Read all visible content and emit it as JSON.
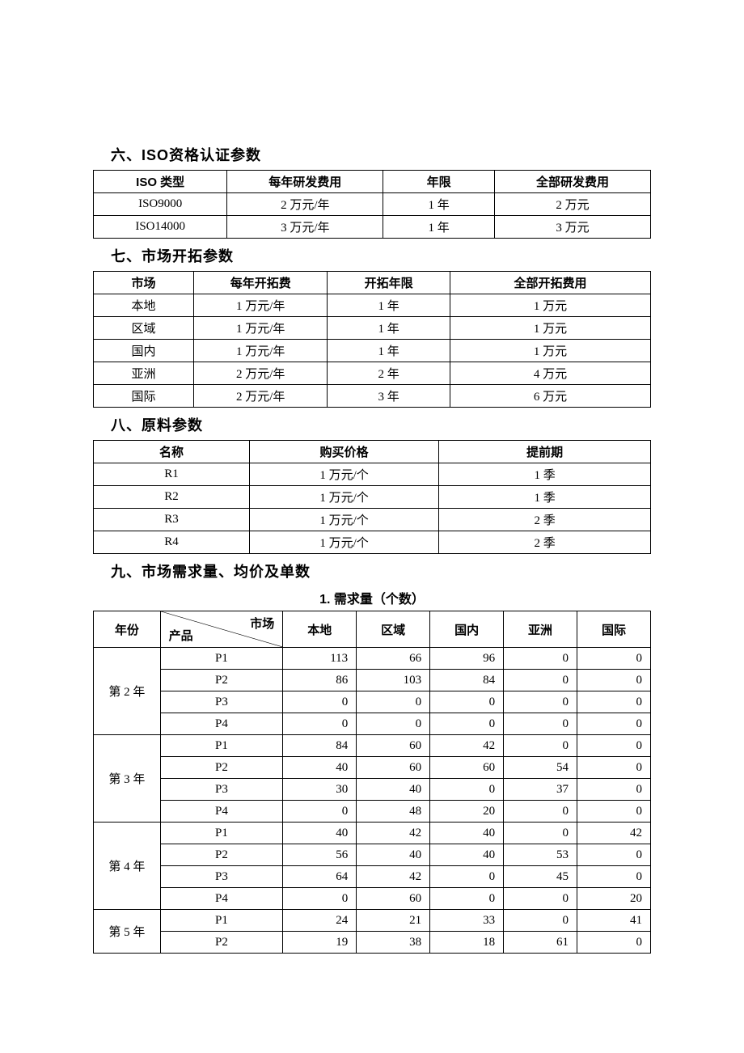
{
  "section6": {
    "heading": "六、ISO资格认证参数",
    "columns": [
      "ISO 类型",
      "每年研发费用",
      "年限",
      "全部研发费用"
    ],
    "rows": [
      [
        "ISO9000",
        "2 万元/年",
        "1 年",
        "2 万元"
      ],
      [
        "ISO14000",
        "3 万元/年",
        "1 年",
        "3 万元"
      ]
    ]
  },
  "section7": {
    "heading": "七、市场开拓参数",
    "columns": [
      "市场",
      "每年开拓费",
      "开拓年限",
      "全部开拓费用"
    ],
    "rows": [
      [
        "本地",
        "1 万元/年",
        "1 年",
        "1 万元"
      ],
      [
        "区域",
        "1 万元/年",
        "1 年",
        "1 万元"
      ],
      [
        "国内",
        "1 万元/年",
        "1 年",
        "1 万元"
      ],
      [
        "亚洲",
        "2 万元/年",
        "2 年",
        "4 万元"
      ],
      [
        "国际",
        "2 万元/年",
        "3 年",
        "6 万元"
      ]
    ]
  },
  "section8": {
    "heading": "八、原料参数",
    "columns": [
      "名称",
      "购买价格",
      "提前期"
    ],
    "rows": [
      [
        "R1",
        "1 万元/个",
        "1 季"
      ],
      [
        "R2",
        "1 万元/个",
        "1 季"
      ],
      [
        "R3",
        "1 万元/个",
        "2 季"
      ],
      [
        "R4",
        "1 万元/个",
        "2 季"
      ]
    ]
  },
  "section9": {
    "heading": "九、市场需求量、均价及单数",
    "subheading": "1. 需求量（个数）",
    "year_label": "年份",
    "diag_top": "市场",
    "diag_bottom": "产品",
    "market_cols": [
      "本地",
      "区域",
      "国内",
      "亚洲",
      "国际"
    ],
    "groups": [
      {
        "year": "第 2 年",
        "rows": [
          [
            "P1",
            "113",
            "66",
            "96",
            "0",
            "0"
          ],
          [
            "P2",
            "86",
            "103",
            "84",
            "0",
            "0"
          ],
          [
            "P3",
            "0",
            "0",
            "0",
            "0",
            "0"
          ],
          [
            "P4",
            "0",
            "0",
            "0",
            "0",
            "0"
          ]
        ]
      },
      {
        "year": "第 3 年",
        "rows": [
          [
            "P1",
            "84",
            "60",
            "42",
            "0",
            "0"
          ],
          [
            "P2",
            "40",
            "60",
            "60",
            "54",
            "0"
          ],
          [
            "P3",
            "30",
            "40",
            "0",
            "37",
            "0"
          ],
          [
            "P4",
            "0",
            "48",
            "20",
            "0",
            "0"
          ]
        ]
      },
      {
        "year": "第 4 年",
        "rows": [
          [
            "P1",
            "40",
            "42",
            "40",
            "0",
            "42"
          ],
          [
            "P2",
            "56",
            "40",
            "40",
            "53",
            "0"
          ],
          [
            "P3",
            "64",
            "42",
            "0",
            "45",
            "0"
          ],
          [
            "P4",
            "0",
            "60",
            "0",
            "0",
            "20"
          ]
        ]
      },
      {
        "year": "第 5 年",
        "rows": [
          [
            "P1",
            "24",
            "21",
            "33",
            "0",
            "41"
          ],
          [
            "P2",
            "19",
            "38",
            "18",
            "61",
            "0"
          ]
        ]
      }
    ]
  }
}
